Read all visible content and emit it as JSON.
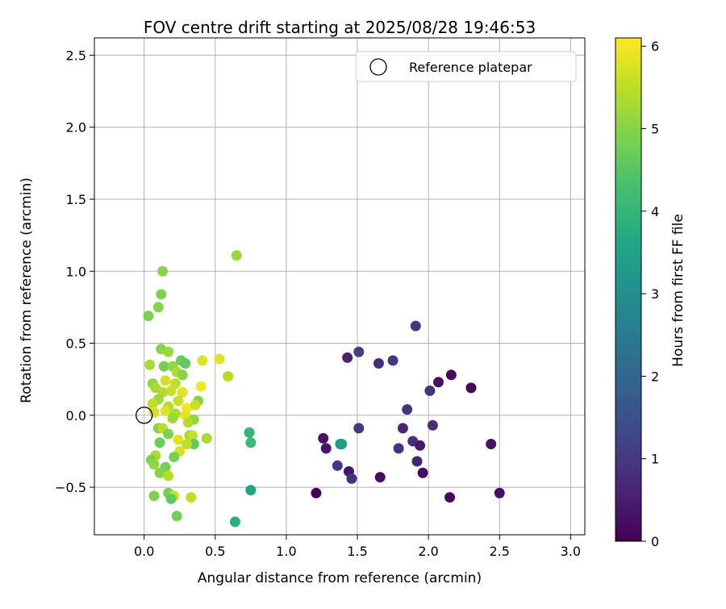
{
  "chart_data": {
    "type": "scatter",
    "title": "FOV centre drift starting at 2025/08/28 19:46:53",
    "xlabel": "Angular distance from reference (arcmin)",
    "ylabel": "Rotation from reference (arcmin)",
    "xlim": [
      -0.35,
      3.1
    ],
    "ylim": [
      -0.83,
      2.62
    ],
    "xticks": [
      0.0,
      0.5,
      1.0,
      1.5,
      2.0,
      2.5,
      3.0
    ],
    "xtick_labels": [
      "0.0",
      "0.5",
      "1.0",
      "1.5",
      "2.0",
      "2.5",
      "3.0"
    ],
    "yticks": [
      -0.5,
      0.0,
      0.5,
      1.0,
      1.5,
      2.0,
      2.5
    ],
    "ytick_labels": [
      "−0.5",
      "0.0",
      "0.5",
      "1.0",
      "1.5",
      "2.0",
      "2.5"
    ],
    "grid": true,
    "legend": {
      "placement": "top-right",
      "entries": [
        "Reference platepar"
      ]
    },
    "reference_point": {
      "x": 0.0,
      "y": 0.0,
      "label": "Reference platepar"
    },
    "colorbar": {
      "label": "Hours from first FF file",
      "range": [
        0,
        6.1
      ],
      "ticks": [
        0,
        1,
        2,
        3,
        4,
        5,
        6
      ],
      "tick_labels": [
        "0",
        "1",
        "2",
        "3",
        "4",
        "5",
        "6"
      ],
      "colormap": "viridis"
    },
    "series": [
      {
        "values": [
          {
            "x": 1.21,
            "y": -0.54,
            "c": 0.05
          },
          {
            "x": 1.26,
            "y": -0.16,
            "c": 0.3
          },
          {
            "x": 1.28,
            "y": -0.23,
            "c": 0.35
          },
          {
            "x": 1.36,
            "y": -0.35,
            "c": 1.0
          },
          {
            "x": 1.38,
            "y": -0.2,
            "c": 3.2
          },
          {
            "x": 1.39,
            "y": -0.2,
            "c": 3.4
          },
          {
            "x": 1.43,
            "y": 0.4,
            "c": 0.6
          },
          {
            "x": 1.44,
            "y": -0.39,
            "c": 0.4
          },
          {
            "x": 1.46,
            "y": -0.44,
            "c": 0.9
          },
          {
            "x": 1.51,
            "y": 0.44,
            "c": 1.1
          },
          {
            "x": 1.51,
            "y": -0.09,
            "c": 1.0
          },
          {
            "x": 1.65,
            "y": 0.36,
            "c": 0.8
          },
          {
            "x": 1.66,
            "y": -0.43,
            "c": 0.2
          },
          {
            "x": 1.75,
            "y": 0.38,
            "c": 1.0
          },
          {
            "x": 1.79,
            "y": -0.23,
            "c": 0.9
          },
          {
            "x": 1.82,
            "y": -0.09,
            "c": 0.7
          },
          {
            "x": 1.85,
            "y": 0.04,
            "c": 0.9
          },
          {
            "x": 1.89,
            "y": -0.18,
            "c": 0.8
          },
          {
            "x": 1.91,
            "y": 0.62,
            "c": 1.0
          },
          {
            "x": 1.92,
            "y": -0.32,
            "c": 0.6
          },
          {
            "x": 1.94,
            "y": -0.21,
            "c": 0.4
          },
          {
            "x": 1.96,
            "y": -0.4,
            "c": 0.2
          },
          {
            "x": 2.01,
            "y": 0.17,
            "c": 0.9
          },
          {
            "x": 2.03,
            "y": -0.07,
            "c": 0.8
          },
          {
            "x": 2.07,
            "y": 0.23,
            "c": 0.3
          },
          {
            "x": 2.15,
            "y": -0.57,
            "c": 0.15
          },
          {
            "x": 2.16,
            "y": 0.28,
            "c": 0.1
          },
          {
            "x": 2.3,
            "y": 0.19,
            "c": 0.1
          },
          {
            "x": 2.44,
            "y": -0.2,
            "c": 0.3
          },
          {
            "x": 2.5,
            "y": -0.54,
            "c": 0.25
          },
          {
            "x": 0.74,
            "y": -0.12,
            "c": 4.0
          },
          {
            "x": 0.75,
            "y": -0.19,
            "c": 4.1
          },
          {
            "x": 0.75,
            "y": -0.52,
            "c": 3.6
          },
          {
            "x": 0.64,
            "y": -0.74,
            "c": 3.8
          },
          {
            "x": 0.65,
            "y": 1.11,
            "c": 5.2
          },
          {
            "x": 0.03,
            "y": 0.69,
            "c": 4.9
          },
          {
            "x": 0.1,
            "y": 0.75,
            "c": 5.0
          },
          {
            "x": 0.12,
            "y": 0.84,
            "c": 4.9
          },
          {
            "x": 0.13,
            "y": 1.0,
            "c": 5.0
          },
          {
            "x": 0.04,
            "y": 0.35,
            "c": 5.3
          },
          {
            "x": 0.12,
            "y": 0.46,
            "c": 5.0
          },
          {
            "x": 0.17,
            "y": 0.44,
            "c": 5.2
          },
          {
            "x": 0.14,
            "y": 0.34,
            "c": 4.8
          },
          {
            "x": 0.2,
            "y": 0.34,
            "c": 5.1
          },
          {
            "x": 0.23,
            "y": 0.3,
            "c": 5.3
          },
          {
            "x": 0.26,
            "y": 0.38,
            "c": 4.7
          },
          {
            "x": 0.29,
            "y": 0.36,
            "c": 4.6
          },
          {
            "x": 0.27,
            "y": 0.28,
            "c": 5.0
          },
          {
            "x": 0.15,
            "y": 0.24,
            "c": 5.7
          },
          {
            "x": 0.06,
            "y": 0.22,
            "c": 5.1
          },
          {
            "x": 0.08,
            "y": 0.19,
            "c": 5.3
          },
          {
            "x": 0.22,
            "y": 0.22,
            "c": 5.5
          },
          {
            "x": 0.19,
            "y": 0.17,
            "c": 5.6
          },
          {
            "x": 0.13,
            "y": 0.16,
            "c": 5.4
          },
          {
            "x": 0.27,
            "y": 0.16,
            "c": 5.8
          },
          {
            "x": 0.1,
            "y": 0.11,
            "c": 5.2
          },
          {
            "x": 0.24,
            "y": 0.1,
            "c": 5.6
          },
          {
            "x": 0.38,
            "y": 0.1,
            "c": 5.0
          },
          {
            "x": 0.06,
            "y": 0.08,
            "c": 5.5
          },
          {
            "x": 0.17,
            "y": 0.06,
            "c": 5.4
          },
          {
            "x": 0.3,
            "y": 0.05,
            "c": 6.0
          },
          {
            "x": 0.36,
            "y": 0.07,
            "c": 5.6
          },
          {
            "x": 0.07,
            "y": 0.02,
            "c": 5.7
          },
          {
            "x": 0.15,
            "y": 0.03,
            "c": 5.8
          },
          {
            "x": 0.22,
            "y": 0.01,
            "c": 5.3
          },
          {
            "x": 0.29,
            "y": 0.0,
            "c": 5.9
          },
          {
            "x": 0.2,
            "y": -0.02,
            "c": 5.2
          },
          {
            "x": 0.35,
            "y": -0.03,
            "c": 5.1
          },
          {
            "x": 0.31,
            "y": -0.05,
            "c": 5.4
          },
          {
            "x": 0.1,
            "y": -0.09,
            "c": 5.0
          },
          {
            "x": 0.13,
            "y": -0.09,
            "c": 5.5
          },
          {
            "x": 0.17,
            "y": -0.13,
            "c": 4.9
          },
          {
            "x": 0.24,
            "y": -0.17,
            "c": 5.8
          },
          {
            "x": 0.32,
            "y": -0.14,
            "c": 5.2
          },
          {
            "x": 0.34,
            "y": -0.14,
            "c": 5.6
          },
          {
            "x": 0.35,
            "y": -0.2,
            "c": 4.6
          },
          {
            "x": 0.3,
            "y": -0.2,
            "c": 5.5
          },
          {
            "x": 0.11,
            "y": -0.19,
            "c": 4.7
          },
          {
            "x": 0.25,
            "y": -0.25,
            "c": 5.7
          },
          {
            "x": 0.21,
            "y": -0.29,
            "c": 4.8
          },
          {
            "x": 0.08,
            "y": -0.28,
            "c": 5.3
          },
          {
            "x": 0.05,
            "y": -0.31,
            "c": 4.9
          },
          {
            "x": 0.07,
            "y": -0.34,
            "c": 5.1
          },
          {
            "x": 0.15,
            "y": -0.36,
            "c": 4.8
          },
          {
            "x": 0.11,
            "y": -0.4,
            "c": 5.0
          },
          {
            "x": 0.17,
            "y": -0.42,
            "c": 5.4
          },
          {
            "x": 0.17,
            "y": -0.54,
            "c": 4.8
          },
          {
            "x": 0.21,
            "y": -0.56,
            "c": 5.6
          },
          {
            "x": 0.19,
            "y": -0.58,
            "c": 4.6
          },
          {
            "x": 0.07,
            "y": -0.56,
            "c": 4.9
          },
          {
            "x": 0.23,
            "y": -0.7,
            "c": 4.8
          },
          {
            "x": 0.33,
            "y": -0.57,
            "c": 5.5
          },
          {
            "x": 0.44,
            "y": -0.16,
            "c": 5.3
          },
          {
            "x": 0.4,
            "y": 0.2,
            "c": 6.0
          },
          {
            "x": 0.41,
            "y": 0.38,
            "c": 5.8
          },
          {
            "x": 0.53,
            "y": 0.39,
            "c": 5.8
          },
          {
            "x": 0.59,
            "y": 0.27,
            "c": 5.4
          }
        ]
      }
    ]
  }
}
